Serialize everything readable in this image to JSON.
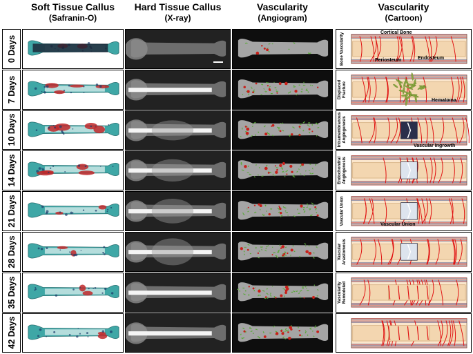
{
  "headers": [
    {
      "title": "Soft Tissue Callus",
      "sub": "(Safranin-O)"
    },
    {
      "title": "Hard Tissue Callus",
      "sub": "(X-ray)"
    },
    {
      "title": "Vascularity",
      "sub": "(Angiogram)"
    },
    {
      "title": "Vascularity",
      "sub": "(Cartoon)"
    }
  ],
  "rows": [
    {
      "day": "0 Days",
      "stage": "Bone Vascularity"
    },
    {
      "day": "7 Days",
      "stage": "Displaced Fracture"
    },
    {
      "day": "10 Days",
      "stage": "Intramembranous Angiogenesis"
    },
    {
      "day": "14 Days",
      "stage": "Endochondral Angiogenesis"
    },
    {
      "day": "21 Days",
      "stage": "Vascular Union"
    },
    {
      "day": "28 Days",
      "stage": "Vascular Anastomosis"
    },
    {
      "day": "35 Days",
      "stage": "Vascularity Remodeled"
    },
    {
      "day": "42 Days",
      "stage": ""
    }
  ],
  "annotations": {
    "cortical_bone": "Cortical Bone",
    "periosteum": "Periosteum",
    "endosteum": "Endosteum",
    "hematoma": "Hematoma",
    "vascular_ingrowth": "Vascular Ingrowth",
    "vascular_union": "Vascular Union"
  },
  "colors": {
    "safranin_teal": "#3fa7a6",
    "safranin_red": "#c0282a",
    "xray_bg": "#1a1a1a",
    "vessel_red": "#e01010",
    "hematoma_green": "#8aa840",
    "bone_tan": "#f3d6b0"
  }
}
